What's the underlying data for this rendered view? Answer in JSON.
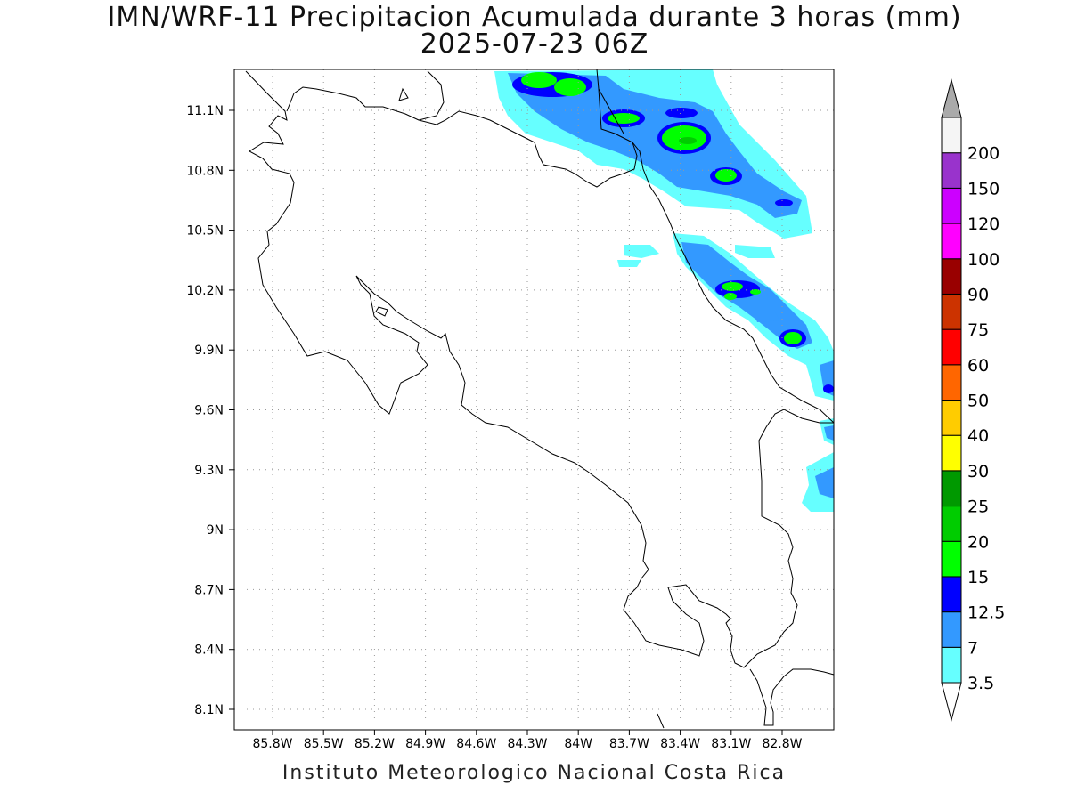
{
  "title": {
    "line1": "IMN/WRF-11 Precipitacion Acumulada durante 3 horas (mm)",
    "line2": "2025-07-23 06Z"
  },
  "footer": "Instituto Meteorologico Nacional Costa Rica",
  "axes": {
    "lat_ticks": [
      "11.1N",
      "10.8N",
      "10.5N",
      "10.2N",
      "9.9N",
      "9.6N",
      "9.3N",
      "9N",
      "8.7N",
      "8.4N",
      "8.1N"
    ],
    "lon_ticks": [
      "85.8W",
      "85.5W",
      "85.2W",
      "84.9W",
      "84.6W",
      "84.3W",
      "84W",
      "83.7W",
      "83.4W",
      "83.1W",
      "82.8W"
    ],
    "grid": "dotted"
  },
  "legend": {
    "levels": [
      "3.5",
      "7",
      "12.5",
      "15",
      "20",
      "25",
      "30",
      "40",
      "50",
      "60",
      "75",
      "90",
      "100",
      "120",
      "150",
      "200"
    ],
    "colors": [
      "#66ffff",
      "#3399ff",
      "#0000ff",
      "#00ff00",
      "#00cc00",
      "#009900",
      "#ffff00",
      "#ffcc00",
      "#ff6600",
      "#ff0000",
      "#cc3300",
      "#990000",
      "#ff00ff",
      "#cc00ff",
      "#9933cc",
      "#f5f5f5"
    ],
    "over_color": "#aaaaaa",
    "under_color": "#ffffff",
    "placement": "right"
  },
  "map": {
    "region": "Costa Rica",
    "coastline_color": "#000000",
    "precip_field": "light rain bands (3.5–20 mm) along the northern Caribbean coast"
  }
}
